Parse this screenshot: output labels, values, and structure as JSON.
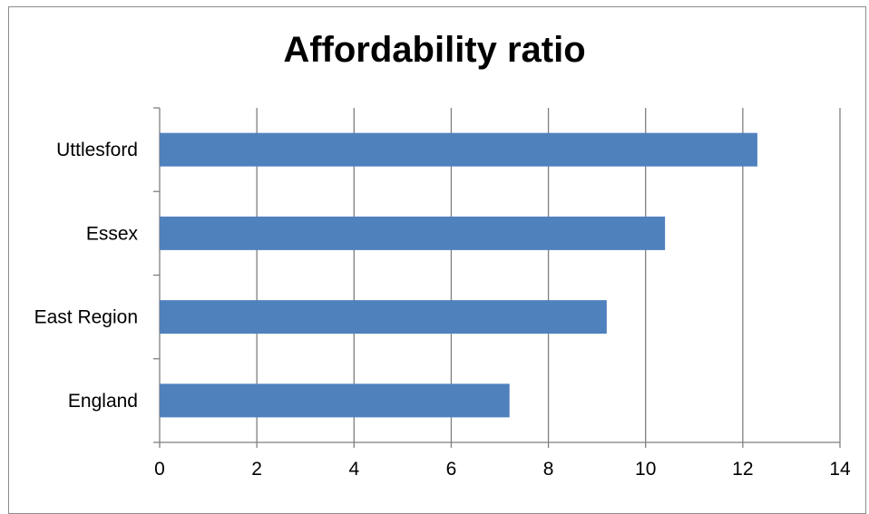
{
  "chart_data": {
    "type": "bar",
    "orientation": "horizontal",
    "title": "Affordability ratio",
    "categories": [
      "Uttlesford",
      "Essex",
      "East Region",
      "England"
    ],
    "values": [
      12.3,
      10.4,
      9.2,
      7.2
    ],
    "xticks": [
      "0",
      "2",
      "4",
      "6",
      "8",
      "10",
      "12",
      "14"
    ],
    "xlim": [
      0,
      14
    ],
    "grid": "vertical",
    "legend": "none",
    "bar_color": "#4f81bd",
    "grid_color": "#7f7f7f",
    "border_color": "#8c8c8c"
  }
}
